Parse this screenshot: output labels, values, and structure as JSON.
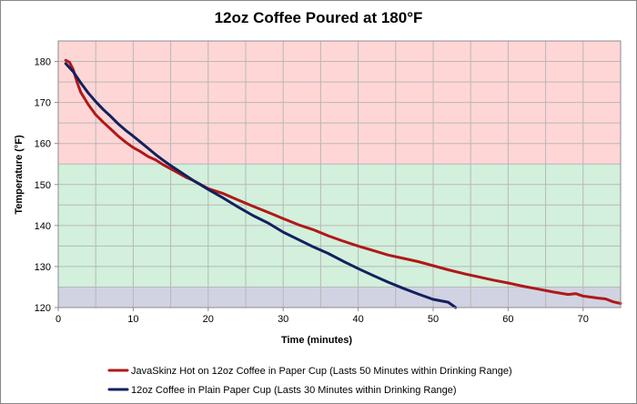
{
  "chart_data": {
    "type": "line",
    "title": "12oz Coffee Poured at 180°F",
    "xlabel": "Time (minutes)",
    "ylabel": "Temperature (°F)",
    "xlim": [
      0,
      75
    ],
    "ylim": [
      120,
      185
    ],
    "xticks": [
      0,
      10,
      20,
      30,
      40,
      50,
      60,
      70
    ],
    "yticks": [
      120,
      130,
      140,
      150,
      160,
      170,
      180
    ],
    "grid": true,
    "legend_position": "bottom",
    "bands": [
      {
        "ymin": 155,
        "ymax": 185,
        "color": "#ffd6d6"
      },
      {
        "ymin": 125,
        "ymax": 155,
        "color": "#d2f0dc"
      },
      {
        "ymin": 120,
        "ymax": 125,
        "color": "#d1d3e2"
      }
    ],
    "series": [
      {
        "name": "JavaSkinz Hot on 12oz Coffee in Paper Cup (Lasts 50 Minutes within Drinking Range)",
        "color": "#b01818",
        "x": [
          1,
          1.5,
          2,
          2.5,
          3,
          4,
          5,
          6,
          7,
          8,
          9,
          10,
          11,
          12,
          13,
          14,
          15,
          16,
          17,
          18,
          19,
          20,
          22,
          24,
          26,
          28,
          30,
          32,
          34,
          36,
          38,
          40,
          42,
          44,
          46,
          48,
          50,
          52,
          54,
          56,
          58,
          60,
          62,
          64,
          66,
          68,
          69,
          70,
          72,
          73,
          74,
          75
        ],
        "y": [
          180.3,
          179.8,
          178,
          175,
          172.5,
          169.5,
          167,
          165.2,
          163.5,
          161.8,
          160.3,
          159,
          158,
          156.8,
          156,
          154.8,
          153.8,
          152.8,
          151.8,
          151,
          150,
          149,
          147.8,
          146.2,
          144.7,
          143.2,
          141.7,
          140.2,
          139,
          137.5,
          136.2,
          135,
          133.9,
          132.8,
          132,
          131.2,
          130.2,
          129.2,
          128.3,
          127.5,
          126.7,
          126,
          125.2,
          124.5,
          123.8,
          123.2,
          123.4,
          122.8,
          122.3,
          122.1,
          121.4,
          121
        ]
      },
      {
        "name": "12oz Coffee in Plain Paper Cup (Lasts 30 Minutes within Drinking Range)",
        "color": "#12205e",
        "x": [
          1,
          2,
          3,
          4,
          5,
          6,
          7,
          8,
          9,
          10,
          11,
          12,
          13,
          14,
          15,
          16,
          17,
          18,
          19,
          20,
          22,
          24,
          26,
          28,
          30,
          32,
          34,
          36,
          38,
          40,
          42,
          44,
          46,
          48,
          50,
          52,
          53
        ],
        "y": [
          179.5,
          177.5,
          174.8,
          172.3,
          170.2,
          168.3,
          166.6,
          164.8,
          163.2,
          161.8,
          160.3,
          158.8,
          157.3,
          155.9,
          154.6,
          153.4,
          152.2,
          151,
          149.9,
          148.8,
          146.7,
          144.5,
          142.4,
          140.6,
          138.4,
          136.6,
          134.8,
          133.2,
          131.3,
          129.5,
          127.8,
          126.2,
          124.7,
          123.3,
          122,
          121.3,
          120
        ]
      }
    ]
  }
}
